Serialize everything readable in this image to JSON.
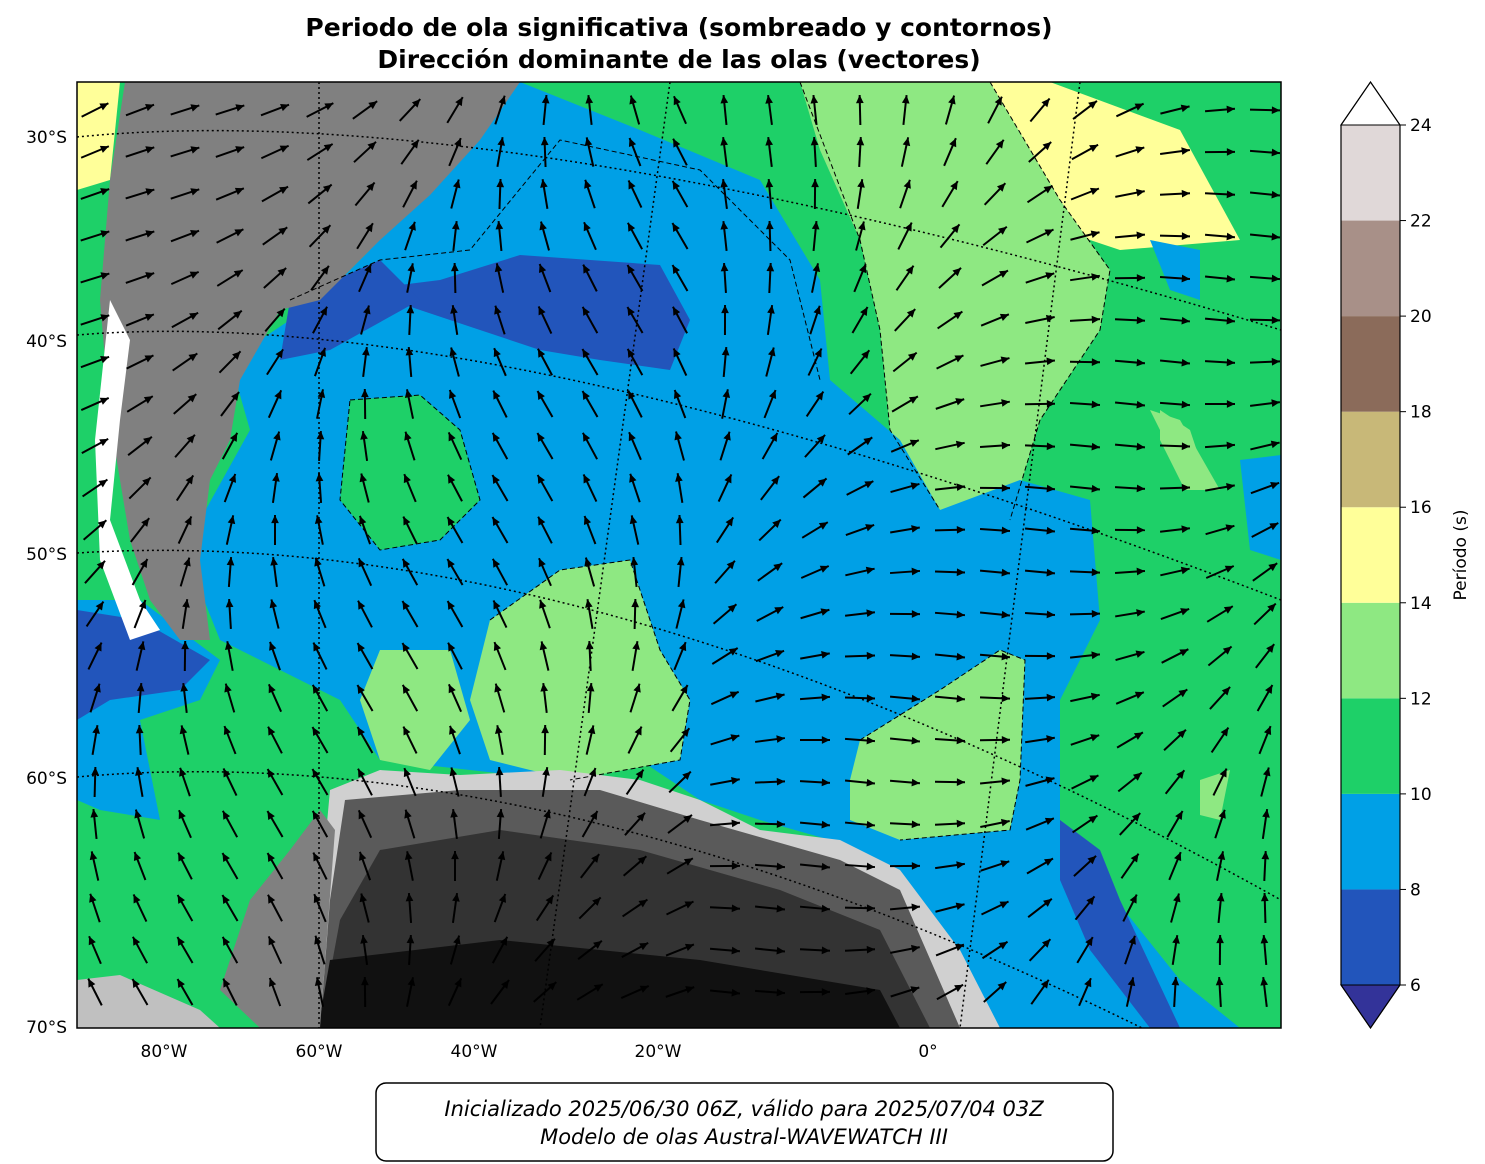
{
  "title": [
    "Periodo de ola significativa (sombreado y contornos)",
    "Dirección dominante de las olas (vectores)"
  ],
  "map": {
    "lat_labels": [
      "30°S",
      "40°S",
      "50°S",
      "60°S",
      "70°S"
    ],
    "lon_labels": [
      "80°W",
      "60°W",
      "40°W",
      "20°W",
      "0°"
    ]
  },
  "colorbar": {
    "label": "Período (s)",
    "ticks": [
      6,
      8,
      10,
      12,
      14,
      16,
      18,
      20,
      22,
      24
    ],
    "colors": [
      "#2255bb",
      "#00a0e6",
      "#1ed068",
      "#8ee882",
      "#ffff99",
      "#c8b878",
      "#8b6b5a",
      "#a89088",
      "#e0d8d8"
    ],
    "under": "#333399",
    "over": "#ffffff"
  },
  "footer": [
    "Inicializado 2025/06/30 06Z, válido para 2025/07/04 03Z",
    "Modelo de olas Austral-WAVEWATCH III"
  ]
}
